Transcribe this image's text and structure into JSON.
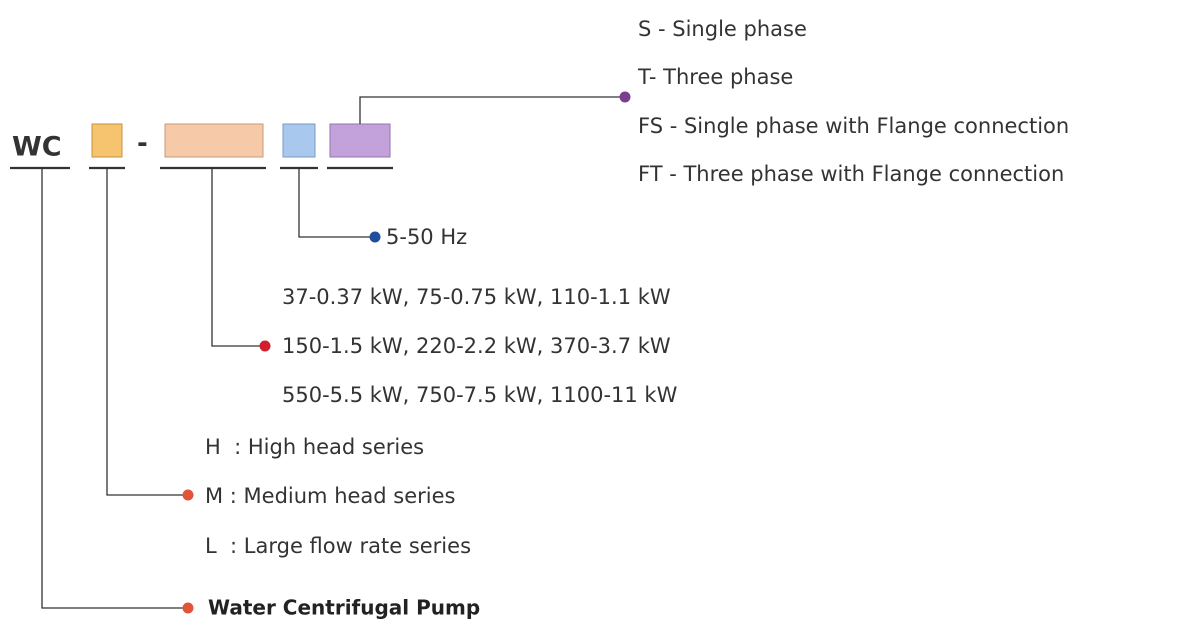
{
  "code": "WC",
  "separator": "-",
  "phase": [
    "S - Single phase",
    "T- Three phase",
    "FS - Single phase with Flange connection",
    "FT - Three phase with Flange connection"
  ],
  "frequency": "5-50 Hz",
  "power": [
    "37-0.37 kW, 75-0.75 kW, 110-1.1 kW",
    "150-1.5 kW, 220-2.2 kW, 370-3.7 kW",
    "550-5.5 kW, 750-7.5 kW, 1100-11 kW"
  ],
  "series": [
    "H  : High head series",
    "M : Medium head series",
    "L  : Large flow rate series"
  ],
  "product": "Water Centrifugal Pump"
}
